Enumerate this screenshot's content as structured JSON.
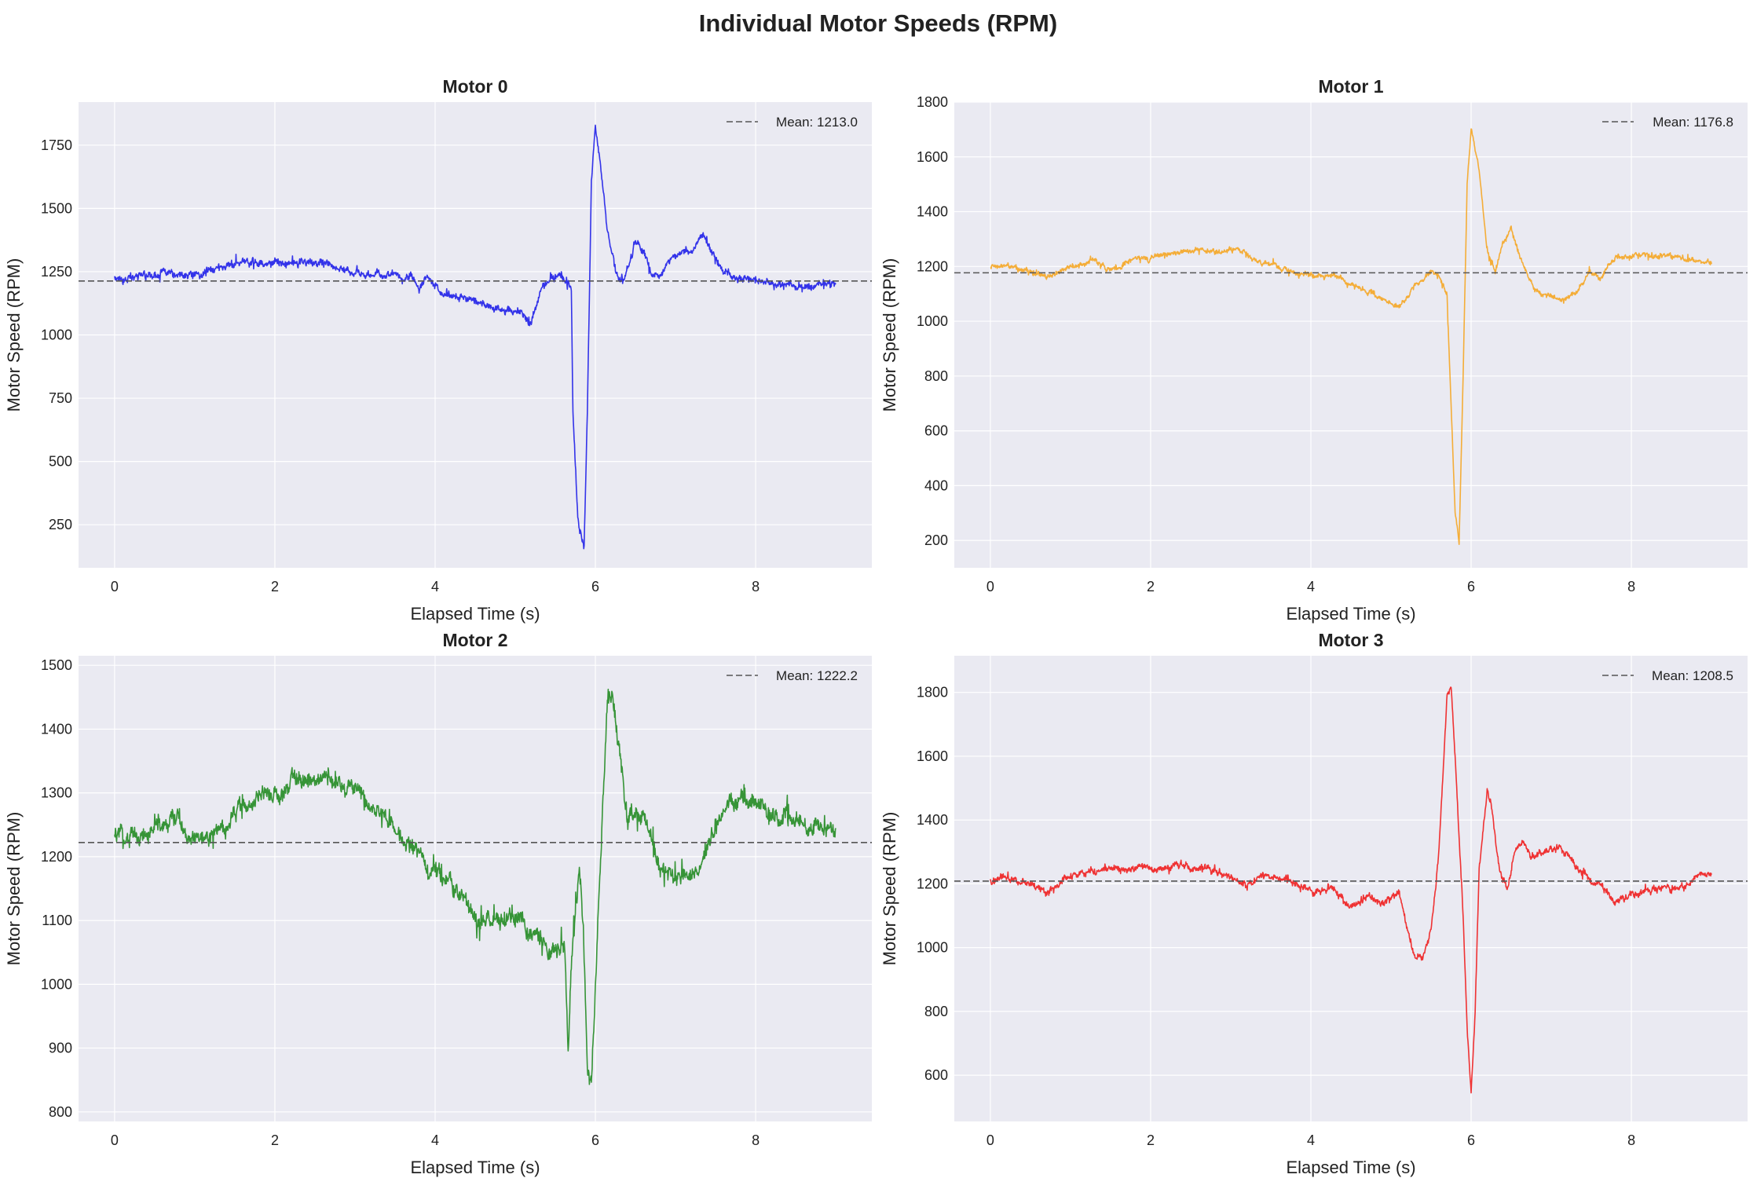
{
  "figure_title": "Individual Motor Speeds (RPM)",
  "colors": {
    "background": "#eaeaf2",
    "grid": "#ffffff",
    "mean_line": "#555555"
  },
  "chart_data": [
    {
      "type": "line",
      "title": "Motor 0",
      "xlabel": "Elapsed Time (s)",
      "ylabel": "Motor Speed (RPM)",
      "xlim": [
        -0.45,
        9.45
      ],
      "ylim": [
        80,
        1920
      ],
      "xticks": [
        0,
        2,
        4,
        6,
        8
      ],
      "yticks": [
        250,
        500,
        750,
        1000,
        1250,
        1500,
        1750
      ],
      "color": "#1f1fe8",
      "grid": true,
      "legend_position": "top-right",
      "mean": {
        "label": "Mean: 1213.0",
        "value": 1213.0
      },
      "series": [
        {
          "noise": 22,
          "points": [
            [
              0,
              1225
            ],
            [
              0.3,
              1228
            ],
            [
              0.6,
              1245
            ],
            [
              0.9,
              1228
            ],
            [
              1.1,
              1240
            ],
            [
              1.3,
              1270
            ],
            [
              1.6,
              1295
            ],
            [
              1.8,
              1285
            ],
            [
              2.1,
              1290
            ],
            [
              2.4,
              1282
            ],
            [
              2.7,
              1285
            ],
            [
              3.0,
              1245
            ],
            [
              3.3,
              1235
            ],
            [
              3.5,
              1240
            ],
            [
              3.6,
              1215
            ],
            [
              3.7,
              1245
            ],
            [
              3.8,
              1185
            ],
            [
              3.9,
              1230
            ],
            [
              4.0,
              1200
            ],
            [
              4.1,
              1170
            ],
            [
              4.3,
              1145
            ],
            [
              4.5,
              1130
            ],
            [
              4.7,
              1115
            ],
            [
              4.9,
              1100
            ],
            [
              5.05,
              1085
            ],
            [
              5.15,
              1060
            ],
            [
              5.2,
              1035
            ],
            [
              5.25,
              1100
            ],
            [
              5.35,
              1200
            ],
            [
              5.5,
              1225
            ],
            [
              5.6,
              1215
            ],
            [
              5.7,
              1190
            ],
            [
              5.72,
              700
            ],
            [
              5.78,
              280
            ],
            [
              5.83,
              190
            ],
            [
              5.86,
              165
            ],
            [
              5.9,
              700
            ],
            [
              5.95,
              1600
            ],
            [
              6.0,
              1820
            ],
            [
              6.05,
              1700
            ],
            [
              6.15,
              1420
            ],
            [
              6.25,
              1250
            ],
            [
              6.35,
              1210
            ],
            [
              6.5,
              1360
            ],
            [
              6.6,
              1330
            ],
            [
              6.7,
              1250
            ],
            [
              6.8,
              1230
            ],
            [
              6.95,
              1310
            ],
            [
              7.1,
              1330
            ],
            [
              7.2,
              1335
            ],
            [
              7.3,
              1385
            ],
            [
              7.35,
              1395
            ],
            [
              7.45,
              1330
            ],
            [
              7.6,
              1250
            ],
            [
              7.8,
              1225
            ],
            [
              8.0,
              1215
            ],
            [
              8.3,
              1205
            ],
            [
              8.6,
              1195
            ],
            [
              9.0,
              1205
            ]
          ]
        }
      ]
    },
    {
      "type": "line",
      "title": "Motor 1",
      "xlabel": "Elapsed Time (s)",
      "ylabel": "Motor Speed (RPM)",
      "xlim": [
        -0.45,
        9.45
      ],
      "ylim": [
        100,
        1800
      ],
      "xticks": [
        0,
        2,
        4,
        6,
        8
      ],
      "yticks": [
        200,
        400,
        600,
        800,
        1000,
        1200,
        1400,
        1600,
        1800
      ],
      "color": "#f5a623",
      "grid": true,
      "legend_position": "top-right",
      "mean": {
        "label": "Mean: 1176.8",
        "value": 1176.8
      },
      "series": [
        {
          "noise": 14,
          "points": [
            [
              0,
              1200
            ],
            [
              0.3,
              1195
            ],
            [
              0.5,
              1180
            ],
            [
              0.7,
              1160
            ],
            [
              1.0,
              1200
            ],
            [
              1.3,
              1225
            ],
            [
              1.5,
              1185
            ],
            [
              1.8,
              1225
            ],
            [
              2.2,
              1240
            ],
            [
              2.6,
              1265
            ],
            [
              2.9,
              1250
            ],
            [
              3.1,
              1270
            ],
            [
              3.3,
              1215
            ],
            [
              3.5,
              1210
            ],
            [
              3.7,
              1185
            ],
            [
              4.0,
              1165
            ],
            [
              4.3,
              1170
            ],
            [
              4.6,
              1120
            ],
            [
              4.9,
              1080
            ],
            [
              5.1,
              1050
            ],
            [
              5.3,
              1130
            ],
            [
              5.5,
              1185
            ],
            [
              5.6,
              1170
            ],
            [
              5.7,
              1100
            ],
            [
              5.75,
              700
            ],
            [
              5.8,
              300
            ],
            [
              5.85,
              190
            ],
            [
              5.9,
              800
            ],
            [
              5.95,
              1500
            ],
            [
              6.0,
              1710
            ],
            [
              6.1,
              1550
            ],
            [
              6.2,
              1260
            ],
            [
              6.3,
              1180
            ],
            [
              6.4,
              1290
            ],
            [
              6.5,
              1340
            ],
            [
              6.6,
              1240
            ],
            [
              6.8,
              1115
            ],
            [
              7.1,
              1080
            ],
            [
              7.3,
              1105
            ],
            [
              7.5,
              1185
            ],
            [
              7.6,
              1150
            ],
            [
              7.8,
              1230
            ],
            [
              8.2,
              1240
            ],
            [
              8.6,
              1230
            ],
            [
              9.0,
              1210
            ]
          ]
        }
      ]
    },
    {
      "type": "line",
      "title": "Motor 2",
      "xlabel": "Elapsed Time (s)",
      "ylabel": "Motor Speed (RPM)",
      "xlim": [
        -0.45,
        9.45
      ],
      "ylim": [
        785,
        1515
      ],
      "xticks": [
        0,
        2,
        4,
        6,
        8
      ],
      "yticks": [
        800,
        900,
        1000,
        1100,
        1200,
        1300,
        1400,
        1500
      ],
      "color": "#228b22",
      "grid": true,
      "legend_position": "top-right",
      "mean": {
        "label": "Mean: 1222.2",
        "value": 1222.2
      },
      "series": [
        {
          "noise": 20,
          "points": [
            [
              0,
              1230
            ],
            [
              0.3,
              1235
            ],
            [
              0.6,
              1250
            ],
            [
              0.8,
              1260
            ],
            [
              1.0,
              1225
            ],
            [
              1.3,
              1235
            ],
            [
              1.6,
              1280
            ],
            [
              1.9,
              1295
            ],
            [
              2.1,
              1300
            ],
            [
              2.3,
              1320
            ],
            [
              2.6,
              1330
            ],
            [
              2.9,
              1310
            ],
            [
              3.2,
              1290
            ],
            [
              3.5,
              1245
            ],
            [
              3.7,
              1220
            ],
            [
              3.9,
              1180
            ],
            [
              4.1,
              1170
            ],
            [
              4.3,
              1140
            ],
            [
              4.5,
              1110
            ],
            [
              4.8,
              1095
            ],
            [
              5.0,
              1100
            ],
            [
              5.2,
              1080
            ],
            [
              5.4,
              1060
            ],
            [
              5.55,
              1050
            ],
            [
              5.62,
              1060
            ],
            [
              5.66,
              900
            ],
            [
              5.7,
              1030
            ],
            [
              5.8,
              1180
            ],
            [
              5.85,
              1100
            ],
            [
              5.9,
              870
            ],
            [
              5.95,
              860
            ],
            [
              6.0,
              1000
            ],
            [
              6.1,
              1300
            ],
            [
              6.15,
              1450
            ],
            [
              6.2,
              1470
            ],
            [
              6.3,
              1360
            ],
            [
              6.4,
              1260
            ],
            [
              6.6,
              1270
            ],
            [
              6.8,
              1180
            ],
            [
              7.0,
              1170
            ],
            [
              7.3,
              1180
            ],
            [
              7.5,
              1250
            ],
            [
              7.7,
              1290
            ],
            [
              8.0,
              1280
            ],
            [
              8.3,
              1265
            ],
            [
              8.7,
              1245
            ],
            [
              9.0,
              1240
            ]
          ]
        }
      ]
    },
    {
      "type": "line",
      "title": "Motor 3",
      "xlabel": "Elapsed Time (s)",
      "ylabel": "Motor Speed (RPM)",
      "xlim": [
        -0.45,
        9.45
      ],
      "ylim": [
        455,
        1915
      ],
      "xticks": [
        0,
        2,
        4,
        6,
        8
      ],
      "yticks": [
        600,
        800,
        1000,
        1200,
        1400,
        1600,
        1800
      ],
      "color": "#f01e1e",
      "grid": true,
      "legend_position": "top-right",
      "mean": {
        "label": "Mean: 1208.5",
        "value": 1208.5
      },
      "series": [
        {
          "noise": 16,
          "points": [
            [
              0,
              1205
            ],
            [
              0.3,
              1215
            ],
            [
              0.6,
              1195
            ],
            [
              0.7,
              1165
            ],
            [
              0.9,
              1215
            ],
            [
              1.2,
              1235
            ],
            [
              1.6,
              1245
            ],
            [
              2.0,
              1250
            ],
            [
              2.4,
              1255
            ],
            [
              2.8,
              1240
            ],
            [
              3.0,
              1225
            ],
            [
              3.2,
              1190
            ],
            [
              3.4,
              1230
            ],
            [
              3.7,
              1215
            ],
            [
              4.0,
              1180
            ],
            [
              4.3,
              1180
            ],
            [
              4.5,
              1120
            ],
            [
              4.7,
              1160
            ],
            [
              4.9,
              1140
            ],
            [
              5.1,
              1170
            ],
            [
              5.2,
              1070
            ],
            [
              5.3,
              970
            ],
            [
              5.4,
              960
            ],
            [
              5.5,
              1050
            ],
            [
              5.6,
              1300
            ],
            [
              5.7,
              1800
            ],
            [
              5.75,
              1820
            ],
            [
              5.8,
              1600
            ],
            [
              5.9,
              1100
            ],
            [
              5.95,
              750
            ],
            [
              6.0,
              550
            ],
            [
              6.05,
              800
            ],
            [
              6.1,
              1250
            ],
            [
              6.2,
              1500
            ],
            [
              6.25,
              1450
            ],
            [
              6.35,
              1250
            ],
            [
              6.45,
              1180
            ],
            [
              6.55,
              1300
            ],
            [
              6.65,
              1340
            ],
            [
              6.75,
              1280
            ],
            [
              6.9,
              1295
            ],
            [
              7.1,
              1320
            ],
            [
              7.3,
              1260
            ],
            [
              7.5,
              1210
            ],
            [
              7.7,
              1175
            ],
            [
              7.8,
              1140
            ],
            [
              8.0,
              1170
            ],
            [
              8.3,
              1180
            ],
            [
              8.7,
              1195
            ],
            [
              8.85,
              1230
            ],
            [
              9.0,
              1220
            ]
          ]
        }
      ]
    }
  ]
}
